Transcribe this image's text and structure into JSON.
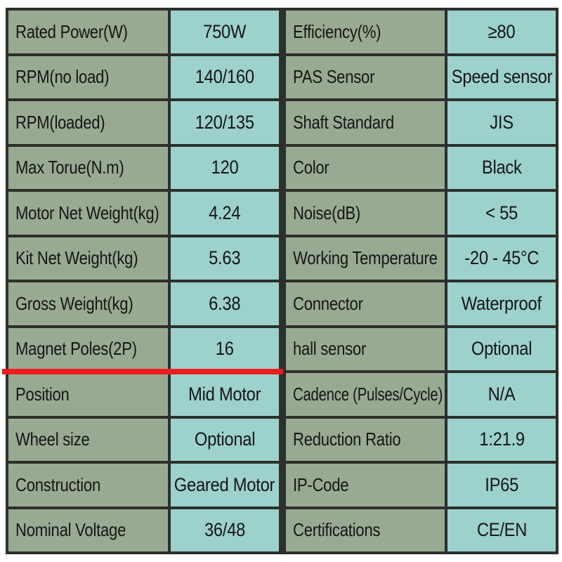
{
  "document": {
    "kind": "motor-specification-table",
    "colors": {
      "page_bg": "#ffffff",
      "label_bg": "#99aa93",
      "value_bg": "#9dd1cc",
      "border": "#2b302b",
      "text": "#151515",
      "red_divider": "#ec1c1f"
    },
    "left_table": {
      "rows": [
        {
          "label": "Rated Power(W)",
          "value": "750W"
        },
        {
          "label": "RPM(no load)",
          "value": "140/160"
        },
        {
          "label": "RPM(loaded)",
          "value": "120/135"
        },
        {
          "label": "Max Torue(N.m)",
          "value": "120"
        },
        {
          "label": "Motor Net Weight(kg)",
          "value": "4.24"
        },
        {
          "label": "Kit Net Weight(kg)",
          "value": "5.63"
        },
        {
          "label": "Gross Weight(kg)",
          "value": "6.38"
        },
        {
          "label": "Magnet Poles(2P)",
          "value": "16"
        },
        {
          "label": "Position",
          "value": "Mid Motor"
        },
        {
          "label": "Wheel size",
          "value": "Optional"
        },
        {
          "label": "Construction",
          "value": "Geared Motor"
        },
        {
          "label": "Nominal Voltage",
          "value": "36/48"
        }
      ],
      "red_divider_after_row": 8
    },
    "right_table": {
      "rows": [
        {
          "label": "Efficiency(%)",
          "value": "≥80"
        },
        {
          "label": "PAS Sensor",
          "value": "Speed sensor"
        },
        {
          "label": "Shaft Standard",
          "value": "JIS"
        },
        {
          "label": "Color",
          "value": "Black"
        },
        {
          "label": "Noise(dB)",
          "value": "< 55"
        },
        {
          "label": "Working Temperature",
          "value": "-20 - 45°C"
        },
        {
          "label": "Connector",
          "value": "Waterproof"
        },
        {
          "label": "hall sensor",
          "value": "Optional"
        },
        {
          "label": "Cadence (Pulses/Cycle)",
          "value": "N/A"
        },
        {
          "label": "Reduction Ratio",
          "value": "1:21.9"
        },
        {
          "label": "IP-Code",
          "value": "IP65"
        },
        {
          "label": "Certifications",
          "value": "CE/EN"
        }
      ]
    }
  }
}
